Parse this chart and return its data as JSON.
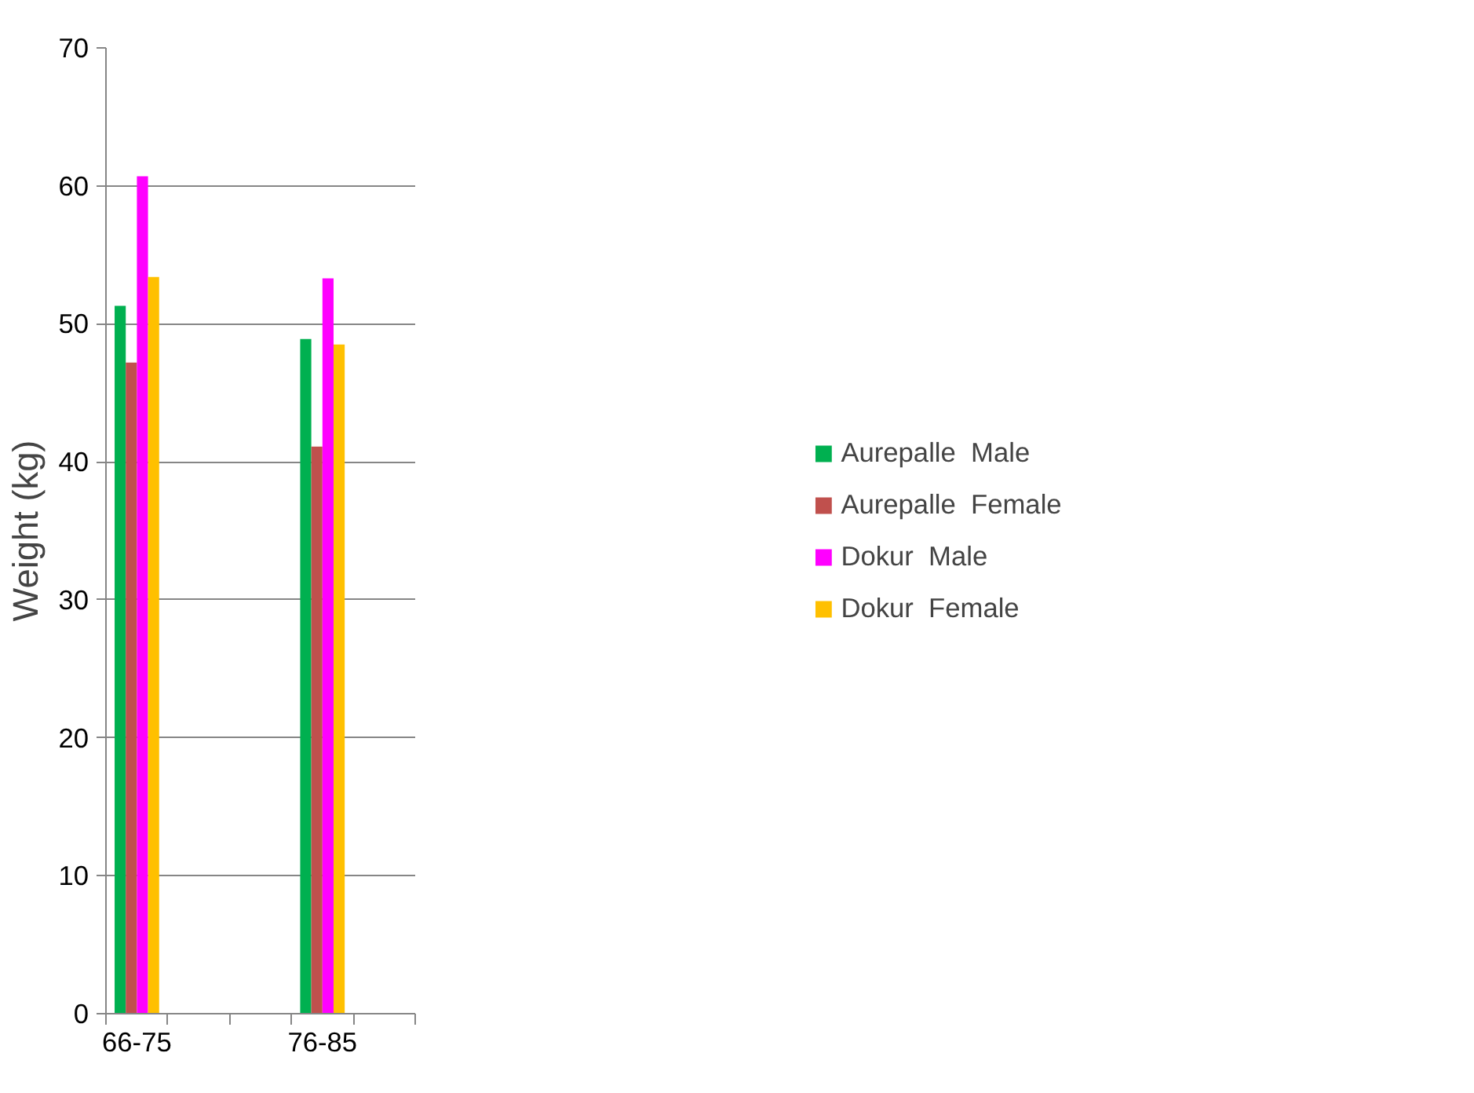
{
  "chart_data": {
    "type": "bar",
    "ylabel": "Weight (kg)",
    "categories": [
      "66-75",
      null,
      null,
      "76-85",
      null
    ],
    "series": [
      {
        "name": "Aurepalle  Male",
        "color": "#00b050",
        "values": [
          51.3,
          null,
          null,
          48.9,
          null
        ]
      },
      {
        "name": "Aurepalle  Female",
        "color": "#c0504d",
        "values": [
          47.2,
          null,
          null,
          41.1,
          null
        ]
      },
      {
        "name": "Dokur  Male",
        "color": "#ff00ff",
        "values": [
          60.7,
          null,
          null,
          53.3,
          null
        ]
      },
      {
        "name": "Dokur  Female",
        "color": "#ffc000",
        "values": [
          53.4,
          null,
          null,
          48.5,
          null
        ]
      }
    ],
    "ylim": [
      0,
      70
    ],
    "yticks": [
      0,
      10,
      20,
      30,
      40,
      50,
      60,
      70
    ],
    "grid": "y",
    "legend": "right"
  }
}
